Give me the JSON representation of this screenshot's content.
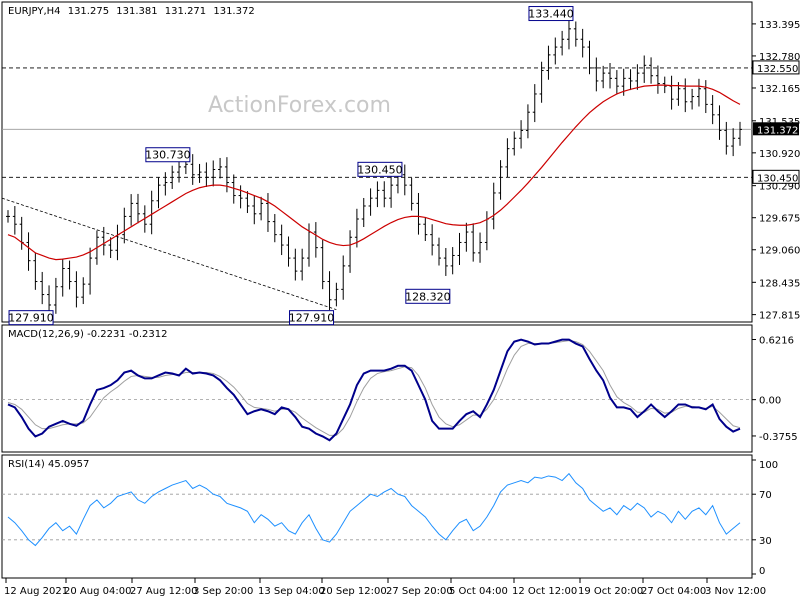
{
  "chart_data": {
    "type": "line",
    "symbol": "EURJPY,H4",
    "ohlc": {
      "open": "131.275",
      "high": "131.381",
      "low": "131.271",
      "close": "131.372"
    },
    "watermark": "ActionForex.com",
    "x_labels": [
      "12 Aug 2021",
      "20 Aug 04:00",
      "27 Aug 12:00",
      "3 Sep 20:00",
      "13 Sep 04:00",
      "20 Sep 12:00",
      "27 Sep 20:00",
      "5 Oct 04:00",
      "12 Oct 12:00",
      "19 Oct 20:00",
      "27 Oct 04:00",
      "3 Nov 12:00"
    ],
    "price_panel": {
      "ylim": [
        127.75,
        133.7
      ],
      "ticks": [
        "133.395",
        "132.780",
        "132.165",
        "131.535",
        "130.920",
        "130.290",
        "129.675",
        "129.060",
        "128.435",
        "127.815"
      ],
      "current_price": "131.372",
      "levels": [
        {
          "value": 132.55,
          "label": "132.550"
        },
        {
          "value": 130.45,
          "label": "130.450"
        }
      ],
      "annotations": [
        {
          "label": "133.440",
          "x_index": 82,
          "value": 133.44
        },
        {
          "label": "130.730",
          "x_index": 26,
          "value": 130.73
        },
        {
          "label": "130.450",
          "x_index": 57,
          "value": 130.45
        },
        {
          "label": "127.910",
          "x_index": 6,
          "value": 127.91
        },
        {
          "label": "127.910",
          "x_index": 47,
          "value": 127.91
        },
        {
          "label": "128.320",
          "x_index": 64,
          "value": 128.32
        }
      ],
      "trendline": [
        {
          "x_index": 0,
          "value": 130.05
        },
        {
          "x_index": 48,
          "value": 127.91
        }
      ],
      "close": [
        129.7,
        129.55,
        129.2,
        128.85,
        128.45,
        128.2,
        128.0,
        128.35,
        128.7,
        128.45,
        128.15,
        128.4,
        128.9,
        129.3,
        129.15,
        129.05,
        129.35,
        129.7,
        129.95,
        129.75,
        129.55,
        130.0,
        130.3,
        130.35,
        130.55,
        130.65,
        130.7,
        130.5,
        130.55,
        130.45,
        130.6,
        130.65,
        130.35,
        130.1,
        130.05,
        129.9,
        129.75,
        129.95,
        129.6,
        129.35,
        129.15,
        128.9,
        128.65,
        128.9,
        129.4,
        129.1,
        128.45,
        128.1,
        128.3,
        128.75,
        129.3,
        129.65,
        129.9,
        130.05,
        130.2,
        130.05,
        130.3,
        130.5,
        130.3,
        129.95,
        129.55,
        129.35,
        129.15,
        128.9,
        128.75,
        128.95,
        129.2,
        129.4,
        129.0,
        129.2,
        129.65,
        130.15,
        130.65,
        131.0,
        131.2,
        131.35,
        131.7,
        132.05,
        132.5,
        132.8,
        132.95,
        133.1,
        133.3,
        133.1,
        132.95,
        132.55,
        132.3,
        132.45,
        132.35,
        132.2,
        132.35,
        132.3,
        132.45,
        132.6,
        132.4,
        132.25,
        132.2,
        131.95,
        132.15,
        131.9,
        132.0,
        132.15,
        131.85,
        131.65,
        131.35,
        131.05,
        131.2,
        131.37
      ],
      "ma": [
        129.35,
        129.3,
        129.2,
        129.1,
        129.0,
        128.95,
        128.9,
        128.87,
        128.88,
        128.9,
        128.92,
        128.96,
        129.02,
        129.1,
        129.18,
        129.26,
        129.34,
        129.42,
        129.5,
        129.58,
        129.66,
        129.74,
        129.82,
        129.9,
        129.98,
        130.06,
        130.14,
        130.2,
        130.25,
        130.28,
        130.3,
        130.3,
        130.28,
        130.24,
        130.2,
        130.15,
        130.1,
        130.05,
        129.98,
        129.9,
        129.8,
        129.7,
        129.6,
        129.5,
        129.42,
        129.34,
        129.26,
        129.2,
        129.16,
        129.14,
        129.15,
        129.2,
        129.27,
        129.35,
        129.43,
        129.51,
        129.58,
        129.64,
        129.68,
        129.7,
        129.7,
        129.68,
        129.64,
        129.6,
        129.56,
        129.54,
        129.53,
        129.53,
        129.55,
        129.58,
        129.64,
        129.72,
        129.82,
        129.94,
        130.07,
        130.2,
        130.34,
        130.49,
        130.64,
        130.8,
        130.96,
        131.12,
        131.27,
        131.42,
        131.56,
        131.69,
        131.8,
        131.9,
        131.98,
        132.05,
        132.1,
        132.14,
        132.17,
        132.2,
        132.21,
        132.22,
        132.22,
        132.21,
        132.21,
        132.2,
        132.2,
        132.2,
        132.18,
        132.14,
        132.08,
        132.0,
        131.92,
        131.85
      ]
    },
    "macd_panel": {
      "title": "MACD(12,26,9) -0.2231 -0.2312",
      "ylim": [
        -0.5,
        0.72
      ],
      "ticks": [
        "0.6216",
        "0.00",
        "-0.3755"
      ],
      "macd": [
        -0.05,
        -0.08,
        -0.18,
        -0.3,
        -0.38,
        -0.35,
        -0.28,
        -0.25,
        -0.22,
        -0.25,
        -0.27,
        -0.22,
        -0.05,
        0.1,
        0.12,
        0.15,
        0.2,
        0.28,
        0.3,
        0.25,
        0.22,
        0.22,
        0.25,
        0.28,
        0.27,
        0.25,
        0.32,
        0.27,
        0.28,
        0.27,
        0.25,
        0.2,
        0.12,
        0.05,
        -0.05,
        -0.15,
        -0.12,
        -0.1,
        -0.12,
        -0.15,
        -0.08,
        -0.1,
        -0.18,
        -0.28,
        -0.3,
        -0.35,
        -0.38,
        -0.42,
        -0.35,
        -0.2,
        -0.05,
        0.15,
        0.27,
        0.3,
        0.3,
        0.3,
        0.32,
        0.35,
        0.35,
        0.3,
        0.15,
        0.0,
        -0.22,
        -0.3,
        -0.3,
        -0.3,
        -0.22,
        -0.15,
        -0.12,
        -0.18,
        -0.05,
        0.1,
        0.3,
        0.5,
        0.6,
        0.62,
        0.6,
        0.57,
        0.58,
        0.58,
        0.6,
        0.62,
        0.62,
        0.58,
        0.55,
        0.42,
        0.3,
        0.2,
        0.02,
        -0.08,
        -0.08,
        -0.1,
        -0.18,
        -0.12,
        -0.05,
        -0.12,
        -0.18,
        -0.12,
        -0.05,
        -0.05,
        -0.08,
        -0.08,
        -0.1,
        -0.05,
        -0.2,
        -0.28,
        -0.33,
        -0.3
      ],
      "signal": [
        -0.03,
        -0.05,
        -0.1,
        -0.18,
        -0.26,
        -0.3,
        -0.3,
        -0.28,
        -0.26,
        -0.25,
        -0.25,
        -0.24,
        -0.18,
        -0.08,
        0.02,
        0.08,
        0.13,
        0.19,
        0.24,
        0.25,
        0.24,
        0.23,
        0.23,
        0.25,
        0.26,
        0.26,
        0.28,
        0.28,
        0.28,
        0.28,
        0.27,
        0.24,
        0.19,
        0.13,
        0.05,
        -0.04,
        -0.08,
        -0.09,
        -0.1,
        -0.12,
        -0.1,
        -0.1,
        -0.13,
        -0.19,
        -0.24,
        -0.29,
        -0.33,
        -0.37,
        -0.37,
        -0.3,
        -0.18,
        -0.02,
        0.12,
        0.22,
        0.27,
        0.29,
        0.3,
        0.32,
        0.34,
        0.33,
        0.25,
        0.12,
        -0.05,
        -0.18,
        -0.25,
        -0.28,
        -0.26,
        -0.21,
        -0.16,
        -0.16,
        -0.1,
        0.0,
        0.15,
        0.32,
        0.46,
        0.55,
        0.58,
        0.58,
        0.58,
        0.58,
        0.59,
        0.6,
        0.61,
        0.6,
        0.57,
        0.5,
        0.4,
        0.3,
        0.15,
        0.03,
        -0.03,
        -0.07,
        -0.13,
        -0.13,
        -0.09,
        -0.1,
        -0.14,
        -0.13,
        -0.09,
        -0.07,
        -0.07,
        -0.08,
        -0.09,
        -0.07,
        -0.13,
        -0.2,
        -0.27,
        -0.29
      ]
    },
    "rsi_panel": {
      "title": "RSI(14) 45.0957",
      "ylim": [
        0,
        100
      ],
      "ticks": [
        "100",
        "70",
        "30",
        "0"
      ],
      "levels": [
        70,
        30
      ],
      "rsi": [
        50,
        45,
        38,
        30,
        25,
        32,
        40,
        45,
        38,
        42,
        35,
        48,
        60,
        65,
        58,
        62,
        68,
        70,
        72,
        65,
        62,
        68,
        72,
        75,
        78,
        80,
        82,
        75,
        78,
        75,
        70,
        68,
        62,
        60,
        58,
        55,
        45,
        52,
        48,
        42,
        45,
        38,
        35,
        45,
        52,
        40,
        30,
        28,
        35,
        45,
        55,
        60,
        65,
        70,
        68,
        72,
        75,
        70,
        68,
        60,
        55,
        50,
        42,
        35,
        30,
        38,
        45,
        48,
        38,
        42,
        50,
        60,
        72,
        78,
        80,
        82,
        80,
        85,
        84,
        86,
        85,
        82,
        88,
        80,
        75,
        65,
        60,
        55,
        58,
        52,
        60,
        56,
        62,
        58,
        50,
        55,
        52,
        45,
        55,
        48,
        55,
        58,
        52,
        60,
        45,
        35,
        40,
        45
      ]
    },
    "colors": {
      "bars": "#000000",
      "ma": "#cc0000",
      "macd": "#00008b",
      "signal": "#a0a0a0",
      "rsi": "#1e90ff",
      "current_tag_bg": "#000000"
    }
  }
}
